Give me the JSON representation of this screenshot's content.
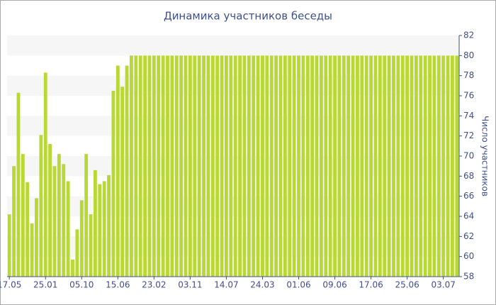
{
  "chart_data": {
    "type": "bar",
    "title": "Динамика участников беседы",
    "y_label": "Число участников",
    "y_axis_position": "right",
    "color": "#b8d935",
    "grid": true,
    "categories": [
      "17.05",
      null,
      null,
      null,
      null,
      null,
      null,
      null,
      "25.01",
      null,
      null,
      null,
      null,
      null,
      null,
      null,
      "05.10",
      null,
      null,
      null,
      null,
      null,
      null,
      null,
      "15.06",
      null,
      null,
      null,
      null,
      null,
      null,
      null,
      "23.02",
      null,
      null,
      null,
      null,
      null,
      null,
      null,
      "03.11",
      null,
      null,
      null,
      null,
      null,
      null,
      null,
      "14.07",
      null,
      null,
      null,
      null,
      null,
      null,
      null,
      "24.03",
      null,
      null,
      null,
      null,
      null,
      null,
      null,
      "01.06",
      null,
      null,
      null,
      null,
      null,
      null,
      null,
      "09.06",
      null,
      null,
      null,
      null,
      null,
      null,
      null,
      "17.06",
      null,
      null,
      null,
      null,
      null,
      null,
      null,
      "25.06",
      null,
      null,
      null,
      null,
      null,
      null,
      null,
      "03.07",
      null,
      null,
      null
    ],
    "values": [
      64.2,
      69.0,
      76.3,
      70.2,
      67.4,
      63.3,
      65.8,
      72.1,
      78.3,
      71.2,
      69.0,
      70.2,
      69.2,
      67.5,
      59.7,
      62.7,
      65.6,
      70.2,
      64.2,
      68.6,
      67.2,
      67.5,
      68.1,
      76.5,
      79.0,
      76.9,
      79.0,
      80,
      80,
      80,
      80,
      80,
      80,
      80,
      80,
      80,
      80,
      80,
      80,
      80,
      80,
      80,
      80,
      80,
      80,
      80,
      80,
      80,
      80,
      80,
      80,
      80,
      80,
      80,
      80,
      80,
      80,
      80,
      80,
      80,
      80,
      80,
      80,
      80,
      80,
      80,
      80,
      80,
      80,
      80,
      80,
      80,
      80,
      80,
      80,
      80,
      80,
      80,
      80,
      80,
      80,
      80,
      80,
      80,
      80,
      80,
      80,
      80,
      80,
      80,
      80,
      80,
      80,
      80,
      80,
      80,
      80,
      80,
      80,
      80
    ],
    "ylim": [
      58,
      82
    ],
    "yticks": [
      58,
      60,
      62,
      64,
      66,
      68,
      70,
      72,
      74,
      76,
      78,
      80,
      82
    ]
  }
}
